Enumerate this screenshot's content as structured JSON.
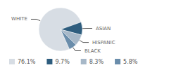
{
  "chart_data": {
    "type": "pie",
    "categories": [
      "WHITE",
      "ASIAN",
      "HISPANIC",
      "BLACK"
    ],
    "values": [
      76.1,
      9.7,
      8.3,
      5.8
    ],
    "value_labels": [
      "76.1%",
      "9.7%",
      "8.3%",
      "5.8%"
    ],
    "colors": [
      "#d7dde4",
      "#2e5d7e",
      "#a7b8c8",
      "#6a8dab"
    ],
    "legend": "bottom"
  }
}
